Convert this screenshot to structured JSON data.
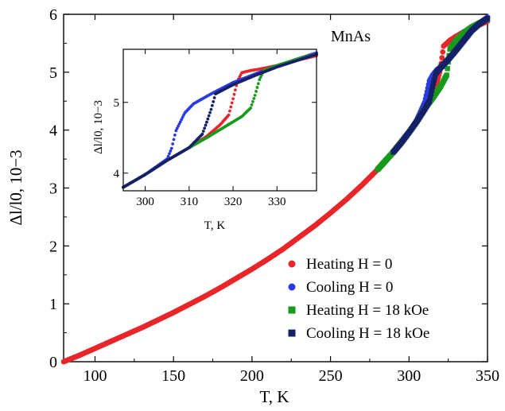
{
  "chart_data": [
    {
      "type": "scatter",
      "annotation": "MnAs",
      "xlabel": "T, K",
      "ylabel": "Δl/l0, 10−3",
      "xlim": [
        80,
        350
      ],
      "ylim": [
        0,
        6
      ],
      "xticks": [
        "100",
        "150",
        "200",
        "250",
        "300",
        "350"
      ],
      "yticks": [
        "0",
        "1",
        "2",
        "3",
        "4",
        "5",
        "6"
      ],
      "legend_position": "lower-right",
      "legend": [
        "Heating H = 0",
        "Cooling H = 0",
        "Heating H = 18 kOe",
        "Cooling H = 18 kOe"
      ],
      "series": [
        {
          "name": "Heating H = 0",
          "color": "#e8262a",
          "marker": "circle",
          "points": [
            [
              80,
              0.0
            ],
            [
              90,
              0.11
            ],
            [
              100,
              0.23
            ],
            [
              110,
              0.35
            ],
            [
              120,
              0.47
            ],
            [
              130,
              0.59
            ],
            [
              140,
              0.72
            ],
            [
              150,
              0.85
            ],
            [
              160,
              0.99
            ],
            [
              170,
              1.13
            ],
            [
              180,
              1.28
            ],
            [
              190,
              1.44
            ],
            [
              200,
              1.6
            ],
            [
              210,
              1.77
            ],
            [
              220,
              1.95
            ],
            [
              230,
              2.15
            ],
            [
              240,
              2.35
            ],
            [
              250,
              2.57
            ],
            [
              260,
              2.8
            ],
            [
              270,
              3.05
            ],
            [
              280,
              3.32
            ],
            [
              290,
              3.62
            ],
            [
              300,
              3.96
            ],
            [
              305,
              4.15
            ],
            [
              310,
              4.37
            ],
            [
              315,
              4.6
            ],
            [
              318,
              4.85
            ],
            [
              320,
              5.05
            ],
            [
              322,
              5.45
            ],
            [
              326,
              5.55
            ],
            [
              330,
              5.62
            ],
            [
              335,
              5.7
            ],
            [
              340,
              5.76
            ],
            [
              345,
              5.82
            ],
            [
              350,
              5.88
            ]
          ]
        },
        {
          "name": "Cooling H = 0",
          "color": "#2a3be0",
          "marker": "circle",
          "points": [
            [
              350,
              5.95
            ],
            [
              345,
              5.85
            ],
            [
              340,
              5.72
            ],
            [
              335,
              5.55
            ],
            [
              330,
              5.38
            ],
            [
              325,
              5.22
            ],
            [
              322,
              5.1
            ],
            [
              318,
              5.05
            ],
            [
              315,
              4.95
            ],
            [
              313,
              4.85
            ],
            [
              311,
              4.6
            ],
            [
              310,
              4.48
            ],
            [
              305,
              4.18
            ],
            [
              300,
              3.96
            ],
            [
              295,
              3.78
            ],
            [
              290,
              3.62
            ]
          ]
        },
        {
          "name": "Heating H = 18 kOe",
          "color": "#179a1d",
          "marker": "square",
          "points": [
            [
              280,
              3.32
            ],
            [
              285,
              3.47
            ],
            [
              290,
              3.62
            ],
            [
              295,
              3.79
            ],
            [
              300,
              3.96
            ],
            [
              305,
              4.15
            ],
            [
              310,
              4.37
            ],
            [
              315,
              4.55
            ],
            [
              320,
              4.75
            ],
            [
              324,
              4.95
            ],
            [
              326,
              5.4
            ],
            [
              330,
              5.55
            ],
            [
              335,
              5.68
            ],
            [
              340,
              5.78
            ],
            [
              345,
              5.85
            ],
            [
              350,
              5.92
            ]
          ]
        },
        {
          "name": "Cooling H = 18 kOe",
          "color": "#152067",
          "marker": "square",
          "points": [
            [
              350,
              5.93
            ],
            [
              345,
              5.84
            ],
            [
              340,
              5.72
            ],
            [
              335,
              5.55
            ],
            [
              330,
              5.38
            ],
            [
              325,
              5.22
            ],
            [
              320,
              5.08
            ],
            [
              317,
              4.98
            ],
            [
              315,
              4.75
            ],
            [
              313,
              4.5
            ],
            [
              310,
              4.36
            ],
            [
              305,
              4.15
            ],
            [
              300,
              3.96
            ],
            [
              295,
              3.78
            ],
            [
              290,
              3.62
            ]
          ]
        }
      ]
    },
    {
      "type": "scatter",
      "xlabel": "T, K",
      "ylabel": "Δl/l0, 10−3",
      "xlim": [
        295,
        339
      ],
      "ylim": [
        3.75,
        5.75
      ],
      "xticks": [
        "300",
        "310",
        "320",
        "330"
      ],
      "yticks": [
        "4",
        "5"
      ],
      "series": [
        {
          "name": "Heating H = 0",
          "color": "#e8262a",
          "points": [
            [
              295,
              3.8
            ],
            [
              300,
              3.98
            ],
            [
              305,
              4.18
            ],
            [
              310,
              4.36
            ],
            [
              314,
              4.52
            ],
            [
              317,
              4.68
            ],
            [
              319,
              4.82
            ],
            [
              320,
              5.05
            ],
            [
              321,
              5.3
            ],
            [
              322,
              5.42
            ],
            [
              324,
              5.45
            ],
            [
              326,
              5.47
            ],
            [
              330,
              5.52
            ],
            [
              335,
              5.6
            ],
            [
              339,
              5.66
            ]
          ]
        },
        {
          "name": "Cooling H = 0",
          "color": "#2a3be0",
          "points": [
            [
              339,
              5.7
            ],
            [
              335,
              5.62
            ],
            [
              330,
              5.52
            ],
            [
              325,
              5.4
            ],
            [
              320,
              5.28
            ],
            [
              315,
              5.12
            ],
            [
              311,
              4.98
            ],
            [
              309,
              4.85
            ],
            [
              307,
              4.6
            ],
            [
              306,
              4.35
            ],
            [
              305,
              4.2
            ],
            [
              300,
              3.98
            ],
            [
              295,
              3.8
            ]
          ]
        },
        {
          "name": "Heating H = 18 kOe",
          "color": "#179a1d",
          "points": [
            [
              295,
              3.8
            ],
            [
              300,
              3.98
            ],
            [
              305,
              4.18
            ],
            [
              310,
              4.36
            ],
            [
              314,
              4.5
            ],
            [
              318,
              4.65
            ],
            [
              322,
              4.8
            ],
            [
              324,
              4.92
            ],
            [
              325,
              5.1
            ],
            [
              326,
              5.32
            ],
            [
              327,
              5.45
            ],
            [
              330,
              5.52
            ],
            [
              335,
              5.62
            ],
            [
              339,
              5.68
            ]
          ]
        },
        {
          "name": "Cooling H = 18 kOe",
          "color": "#152067",
          "points": [
            [
              339,
              5.68
            ],
            [
              335,
              5.6
            ],
            [
              330,
              5.5
            ],
            [
              325,
              5.38
            ],
            [
              320,
              5.25
            ],
            [
              316,
              5.12
            ],
            [
              315,
              4.9
            ],
            [
              314,
              4.72
            ],
            [
              313,
              4.55
            ],
            [
              310,
              4.36
            ],
            [
              305,
              4.18
            ],
            [
              300,
              3.98
            ],
            [
              295,
              3.8
            ]
          ]
        }
      ]
    }
  ]
}
